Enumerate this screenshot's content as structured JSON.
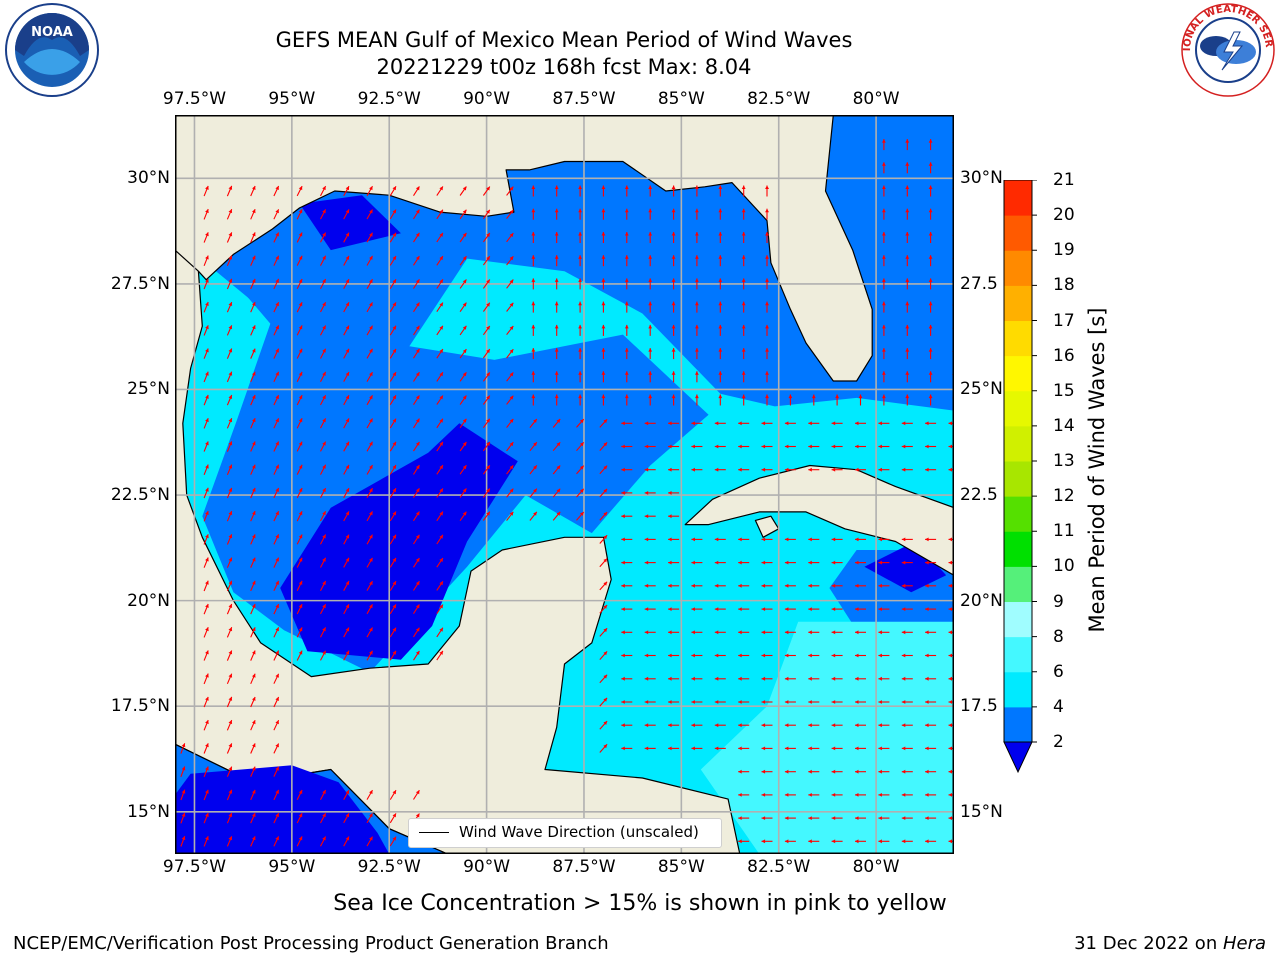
{
  "titles": {
    "line1": "GEFS MEAN Gulf of Mexico Mean Period of Wind Waves",
    "line2": "20221229 t00z 168h fcst   Max: 8.04"
  },
  "map": {
    "lon_range": [
      -98,
      -78
    ],
    "lat_range": [
      14,
      31.5
    ],
    "lon_ticks": [
      "97.5°W",
      "95°W",
      "92.5°W",
      "90°W",
      "87.5°W",
      "85°W",
      "82.5°W",
      "80°W"
    ],
    "lat_ticks": [
      "30°N",
      "27.5°N",
      "25°N",
      "22.5°N",
      "20°N",
      "17.5°N",
      "15°N"
    ],
    "lat_ticks_right": [
      "30°N",
      "27.5",
      "25°N",
      "22.5",
      "20°N",
      "17.5",
      "15°N"
    ],
    "land_color": "#efeddc",
    "grid": true
  },
  "legend": {
    "label": "Wind Wave Direction (unscaled)"
  },
  "colorbar": {
    "label": "Mean Period of Wind Waves [s]",
    "levels": [
      "2",
      "4",
      "6",
      "8",
      "9",
      "10",
      "11",
      "12",
      "13",
      "14",
      "15",
      "16",
      "17",
      "18",
      "19",
      "20",
      "21"
    ],
    "colors": [
      "#0077ff",
      "#00eaff",
      "#44f8ff",
      "#a0fdff",
      "#55f07a",
      "#00e000",
      "#55e000",
      "#a8e600",
      "#d0f000",
      "#e6f800",
      "#fff700",
      "#ffdb00",
      "#ffb000",
      "#ff8a00",
      "#ff5a00",
      "#ff2a00"
    ],
    "under_color": "#0000ee"
  },
  "caption": "Sea Ice Concentration > 15% is shown in pink to yellow",
  "footer": {
    "left": "NCEP/EMC/Verification Post Processing Product Generation Branch",
    "date": "31 Dec 2022 on ",
    "machine": "Hera"
  },
  "logos": {
    "nws_text": "NATIONAL WEATHER SERVICE",
    "noaa_text": "NOAA"
  }
}
